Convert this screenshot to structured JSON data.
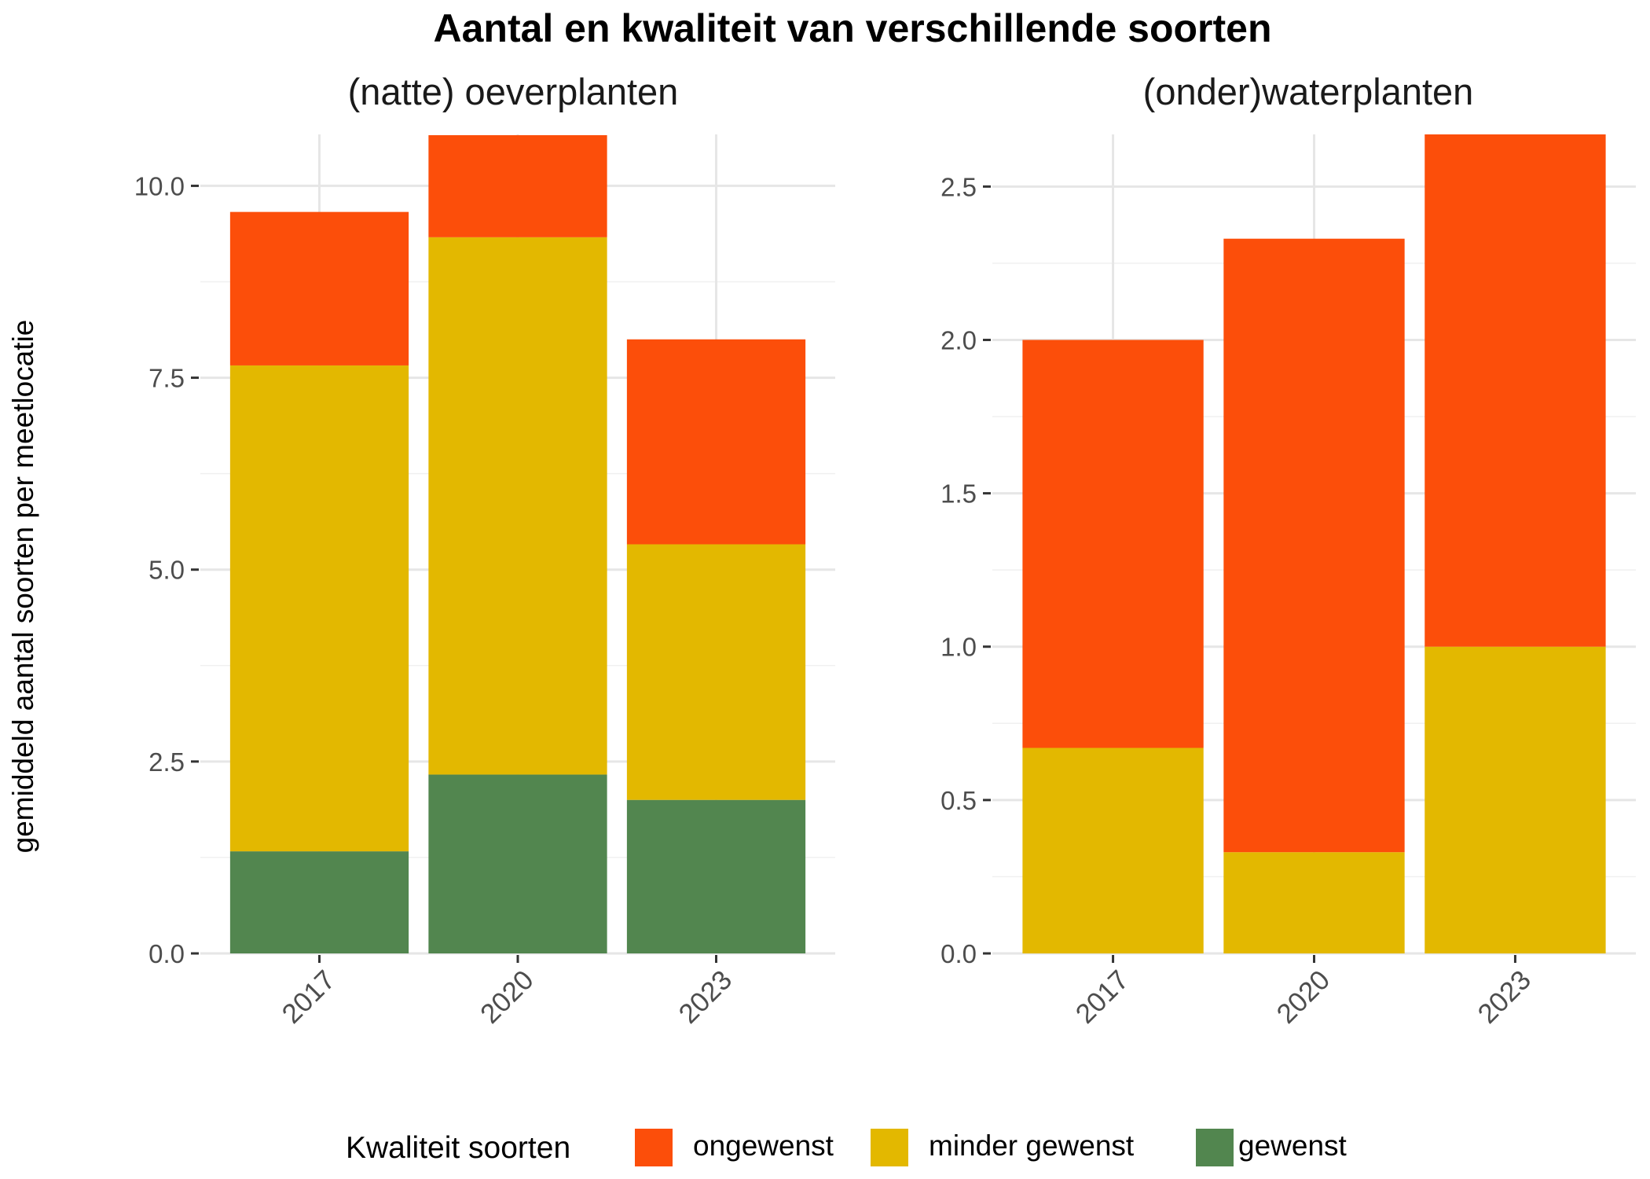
{
  "title": "Aantal en kwaliteit van verschillende soorten",
  "ylabel": "gemiddeld aantal soorten per meetlocatie",
  "legend": {
    "title": "Kwaliteit soorten",
    "position": "bottom",
    "items": [
      {
        "label": "ongewenst",
        "color": "#FC4E0A"
      },
      {
        "label": "minder gewenst",
        "color": "#E3B800"
      },
      {
        "label": "gewenst",
        "color": "#52864F"
      }
    ]
  },
  "chart_data": [
    {
      "type": "bar",
      "stacked": true,
      "title": "(natte) oeverplanten",
      "categories": [
        "2017",
        "2020",
        "2023"
      ],
      "series": [
        {
          "name": "gewenst",
          "color": "#52864F",
          "values": [
            1.33,
            2.33,
            2.0
          ]
        },
        {
          "name": "minder gewenst",
          "color": "#E3B800",
          "values": [
            6.33,
            7.0,
            3.33
          ]
        },
        {
          "name": "ongewenst",
          "color": "#FC4E0A",
          "values": [
            2.0,
            1.33,
            2.67
          ]
        }
      ],
      "ylim": [
        0,
        10.67
      ],
      "yticks": [
        0,
        2.5,
        5,
        7.5,
        10
      ],
      "ytick_labels": [
        "0.0",
        "2.5",
        "5.0",
        "7.5",
        "10.0"
      ],
      "grid": true
    },
    {
      "type": "bar",
      "stacked": true,
      "title": "(onder)waterplanten",
      "categories": [
        "2017",
        "2020",
        "2023"
      ],
      "series": [
        {
          "name": "gewenst",
          "color": "#52864F",
          "values": [
            0,
            0,
            0
          ]
        },
        {
          "name": "minder gewenst",
          "color": "#E3B800",
          "values": [
            0.67,
            0.33,
            1.0
          ]
        },
        {
          "name": "ongewenst",
          "color": "#FC4E0A",
          "values": [
            1.33,
            2.0,
            1.67
          ]
        }
      ],
      "ylim": [
        0,
        2.67
      ],
      "yticks": [
        0,
        0.5,
        1,
        1.5,
        2,
        2.5
      ],
      "ytick_labels": [
        "0.0",
        "0.5",
        "1.0",
        "1.5",
        "2.0",
        "2.5"
      ],
      "grid": true
    }
  ]
}
